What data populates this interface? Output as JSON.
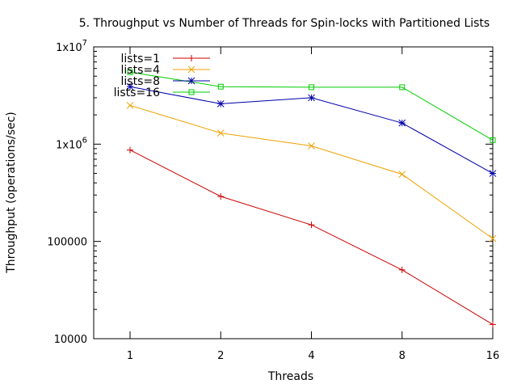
{
  "chart_data": {
    "type": "line",
    "title": "5. Throughput vs Number of Threads for Spin-locks with Partitioned Lists",
    "xlabel": "Threads",
    "ylabel": "Throughput (operations/sec)",
    "x": [
      1,
      2,
      4,
      8,
      16
    ],
    "x_tick_labels": [
      "1",
      "2",
      "4",
      "8",
      "16"
    ],
    "x_scale": "log2",
    "y_scale": "log10",
    "ylim": [
      10000,
      10000000
    ],
    "y_ticks": [
      {
        "value": 10000,
        "label": "10000",
        "superscript": ""
      },
      {
        "value": 100000,
        "label": "100000",
        "superscript": ""
      },
      {
        "value": 1000000,
        "label": "1x10",
        "superscript": "6"
      },
      {
        "value": 10000000,
        "label": "1x10",
        "superscript": "7"
      }
    ],
    "grid": false,
    "legend_position": "top-left",
    "series": [
      {
        "name": "lists=1",
        "color": "#cc0000",
        "marker": "plus",
        "values": [
          870000,
          290000,
          148000,
          51000,
          14000
        ]
      },
      {
        "name": "lists=4",
        "color": "#f0a000",
        "marker": "cross",
        "values": [
          2500000,
          1300000,
          960000,
          490000,
          107000
        ]
      },
      {
        "name": "lists=8",
        "color": "#0000aa",
        "marker": "star",
        "values": [
          3900000,
          2600000,
          3000000,
          1650000,
          500000
        ]
      },
      {
        "name": "lists=16",
        "color": "#00cc00",
        "marker": "square",
        "values": [
          5500000,
          3900000,
          3850000,
          3850000,
          1100000
        ]
      }
    ]
  }
}
